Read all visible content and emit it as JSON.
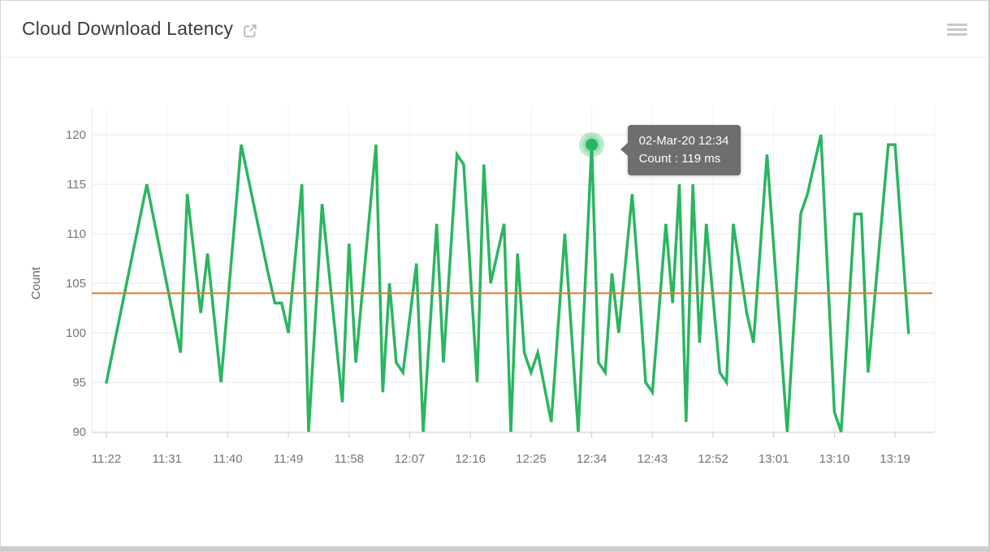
{
  "header": {
    "title": "Cloud Download Latency",
    "external_link_icon": "open-in-new",
    "menu_icon": "hamburger-menu"
  },
  "tooltip": {
    "line1": "02-Mar-20 12:34",
    "line2": "Count : 119 ms"
  },
  "colors": {
    "line": "#2bb561",
    "highlight_halo": "rgba(43,181,97,0.30)",
    "threshold": "#e8782a",
    "grid_horizontal": "#e9e9e9",
    "grid_vertical": "#f3f3f3",
    "axis_line": "#dcdcdc",
    "tick_text": "#757575",
    "title_text": "#3d3d3d",
    "tooltip_bg": "#686868"
  },
  "chart_data": {
    "type": "line",
    "title": "Cloud Download Latency",
    "xlabel": "",
    "ylabel": "Count",
    "unit": "ms",
    "ylim": [
      90,
      120
    ],
    "y_ticks": [
      90,
      95,
      100,
      105,
      110,
      115,
      120
    ],
    "x_ticks": [
      "11:22",
      "11:31",
      "11:40",
      "11:49",
      "11:58",
      "12:07",
      "12:16",
      "12:25",
      "12:34",
      "12:43",
      "12:52",
      "13:01",
      "13:10",
      "13:19"
    ],
    "grid": true,
    "legend_position": "none",
    "threshold": {
      "value": 104
    },
    "highlight": {
      "time": "12:34",
      "value": 119,
      "label": "02-Mar-20 12:34",
      "text": "Count : 119 ms"
    },
    "series": [
      {
        "name": "Count",
        "points": [
          [
            "11:22",
            95
          ],
          [
            "11:28",
            115
          ],
          [
            "11:33",
            98
          ],
          [
            "11:34",
            114
          ],
          [
            "11:36",
            102
          ],
          [
            "11:37",
            108
          ],
          [
            "11:39",
            95
          ],
          [
            "11:42",
            119
          ],
          [
            "11:46",
            106
          ],
          [
            "11:47",
            103
          ],
          [
            "11:48",
            103
          ],
          [
            "11:49",
            100
          ],
          [
            "11:51",
            115
          ],
          [
            "11:52",
            90
          ],
          [
            "11:54",
            113
          ],
          [
            "11:57",
            93
          ],
          [
            "11:58",
            109
          ],
          [
            "11:59",
            97
          ],
          [
            "12:02",
            119
          ],
          [
            "12:03",
            94
          ],
          [
            "12:04",
            105
          ],
          [
            "12:05",
            97
          ],
          [
            "12:06",
            96
          ],
          [
            "12:08",
            107
          ],
          [
            "12:09",
            90
          ],
          [
            "12:11",
            111
          ],
          [
            "12:12",
            97
          ],
          [
            "12:14",
            118
          ],
          [
            "12:15",
            117
          ],
          [
            "12:17",
            95
          ],
          [
            "12:18",
            117
          ],
          [
            "12:19",
            105
          ],
          [
            "12:21",
            111
          ],
          [
            "12:22",
            90
          ],
          [
            "12:23",
            108
          ],
          [
            "12:24",
            98
          ],
          [
            "12:25",
            96
          ],
          [
            "12:26",
            98
          ],
          [
            "12:28",
            91
          ],
          [
            "12:30",
            110
          ],
          [
            "12:32",
            90
          ],
          [
            "12:34",
            119
          ],
          [
            "12:35",
            97
          ],
          [
            "12:36",
            96
          ],
          [
            "12:37",
            106
          ],
          [
            "12:38",
            100
          ],
          [
            "12:40",
            114
          ],
          [
            "12:41",
            105
          ],
          [
            "12:42",
            95
          ],
          [
            "12:43",
            94
          ],
          [
            "12:45",
            111
          ],
          [
            "12:46",
            103
          ],
          [
            "12:47",
            115
          ],
          [
            "12:48",
            91
          ],
          [
            "12:49",
            115
          ],
          [
            "12:50",
            99
          ],
          [
            "12:51",
            111
          ],
          [
            "12:53",
            96
          ],
          [
            "12:54",
            95
          ],
          [
            "12:55",
            111
          ],
          [
            "12:57",
            102
          ],
          [
            "12:58",
            99
          ],
          [
            "13:00",
            118
          ],
          [
            "13:03",
            90
          ],
          [
            "13:05",
            112
          ],
          [
            "13:06",
            114
          ],
          [
            "13:08",
            120
          ],
          [
            "13:10",
            92
          ],
          [
            "13:11",
            90
          ],
          [
            "13:13",
            112
          ],
          [
            "13:14",
            112
          ],
          [
            "13:15",
            96
          ],
          [
            "13:18",
            119
          ],
          [
            "13:19",
            119
          ],
          [
            "13:21",
            100
          ]
        ]
      }
    ]
  }
}
